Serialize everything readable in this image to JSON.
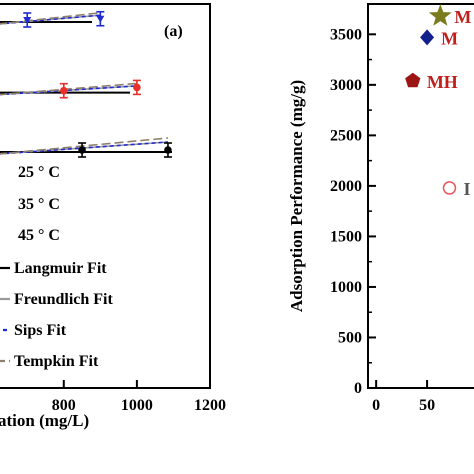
{
  "chart_data": [
    {
      "type": "scatter",
      "panel_label": "(a)",
      "xlabel": "ation (mg/L)",
      "ylabel": "",
      "xlim": [
        620,
        1200
      ],
      "x_ticks": [
        "800",
        "1000",
        "1200"
      ],
      "x_tick_values": [
        800,
        1000,
        1200
      ],
      "series": [
        {
          "name": "25 ° C",
          "color": "#000000",
          "x": [
            850,
            1085
          ],
          "y": [
            0.2,
            0.2
          ]
        },
        {
          "name": "35 ° C",
          "color": "#e8302a",
          "x": [
            800,
            1000
          ],
          "y": [
            2.55,
            2.6
          ]
        },
        {
          "name": "45 ° C",
          "color": "#1f2bd1",
          "x": [
            700,
            900
          ],
          "y": [
            5.35,
            5.4
          ]
        }
      ],
      "fits": [
        "Langmuir Fit",
        "Freundlich Fit",
        "Sips Fit",
        "Tempkin Fit"
      ],
      "legend": [
        {
          "label": "25 ° C",
          "color": "#000000"
        },
        {
          "label": "35 ° C",
          "color": "#e8302a"
        },
        {
          "label": "45 ° C",
          "color": "#1f2bd1"
        },
        {
          "label": "Langmuir Fit",
          "color": "#000000"
        },
        {
          "label": "Freundlich Fit",
          "color": "#9a9a9a"
        },
        {
          "label": "Sips Fit",
          "color": "#1f2bd1"
        },
        {
          "label": "Tempkin Fit",
          "color": "#8f7f6f"
        }
      ],
      "legend_placement": "bottom-left"
    },
    {
      "type": "scatter",
      "xlabel": "",
      "ylabel": "Adsorption Performance (mg/g)",
      "ylim": [
        0,
        3800
      ],
      "xlim": [
        -8,
        100
      ],
      "y_ticks": [
        "0",
        "500",
        "1000",
        "1500",
        "2000",
        "2500",
        "3000",
        "3500"
      ],
      "y_tick_values": [
        0,
        500,
        1000,
        1500,
        2000,
        2500,
        3000,
        3500
      ],
      "x_ticks": [
        "0",
        "50"
      ],
      "x_tick_values": [
        0,
        50
      ],
      "points": [
        {
          "label": "M",
          "x": 63,
          "y": 3680,
          "color": "#7a7a1e",
          "marker": "star"
        },
        {
          "label": "M",
          "x": 50,
          "y": 3470,
          "color": "#12208c",
          "marker": "diamond"
        },
        {
          "label": "MH",
          "x": 36,
          "y": 3040,
          "color": "#9c1616",
          "marker": "pentagon"
        },
        {
          "label": "I",
          "x": 72,
          "y": 1980,
          "color": "#e8585c",
          "marker": "open-circle"
        }
      ]
    }
  ]
}
